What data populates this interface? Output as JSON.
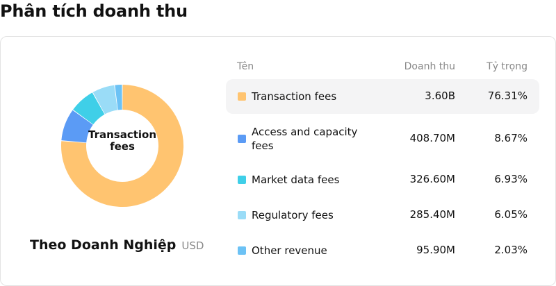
{
  "page_title": "Phân tích doanh thu",
  "donut": {
    "center_label": "Transaction fees",
    "subtitle": "Theo Doanh Nghiệp",
    "unit": "USD"
  },
  "table": {
    "headers": {
      "name": "Tên",
      "revenue": "Doanh thu",
      "share": "Tỷ trọng"
    },
    "active_row": 0
  },
  "chart_data": {
    "type": "pie",
    "title": "",
    "categories": [
      "Transaction fees",
      "Access and capacity fees",
      "Market data fees",
      "Regulatory fees",
      "Other revenue"
    ],
    "values": [
      3600000000,
      408700000,
      326600000,
      285400000,
      95900000
    ],
    "value_labels": [
      "3.60B",
      "408.70M",
      "326.60M",
      "285.40M",
      "95.90M"
    ],
    "shares_percent": [
      76.31,
      8.67,
      6.93,
      6.05,
      2.03
    ],
    "share_labels": [
      "76.31%",
      "8.67%",
      "6.93%",
      "6.05%",
      "2.03%"
    ],
    "colors": [
      "#FFC470",
      "#5B9BF5",
      "#3FCFE8",
      "#9ADCF7",
      "#6CC2F5"
    ],
    "legend_placement": "right"
  }
}
